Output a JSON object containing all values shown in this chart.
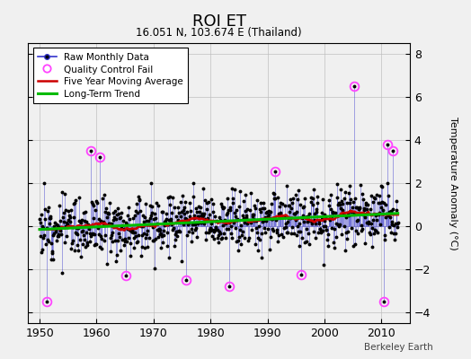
{
  "title": "ROI ET",
  "subtitle": "16.051 N, 103.674 E (Thailand)",
  "ylabel": "Temperature Anomaly (°C)",
  "credit": "Berkeley Earth",
  "ylim": [
    -4.5,
    8.5
  ],
  "yticks": [
    -4,
    -2,
    0,
    2,
    4,
    6,
    8
  ],
  "xlim": [
    1948,
    2015
  ],
  "xticks": [
    1950,
    1960,
    1970,
    1980,
    1990,
    2000,
    2010
  ],
  "line_color": "#3333cc",
  "marker_color": "#000000",
  "moving_avg_color": "#cc0000",
  "trend_color": "#00bb00",
  "qc_fail_color": "#ff44ff",
  "background_color": "#f0f0f0",
  "grid_color": "#bbbbbb",
  "seed": 12,
  "n_years": 63,
  "start_year": 1950
}
